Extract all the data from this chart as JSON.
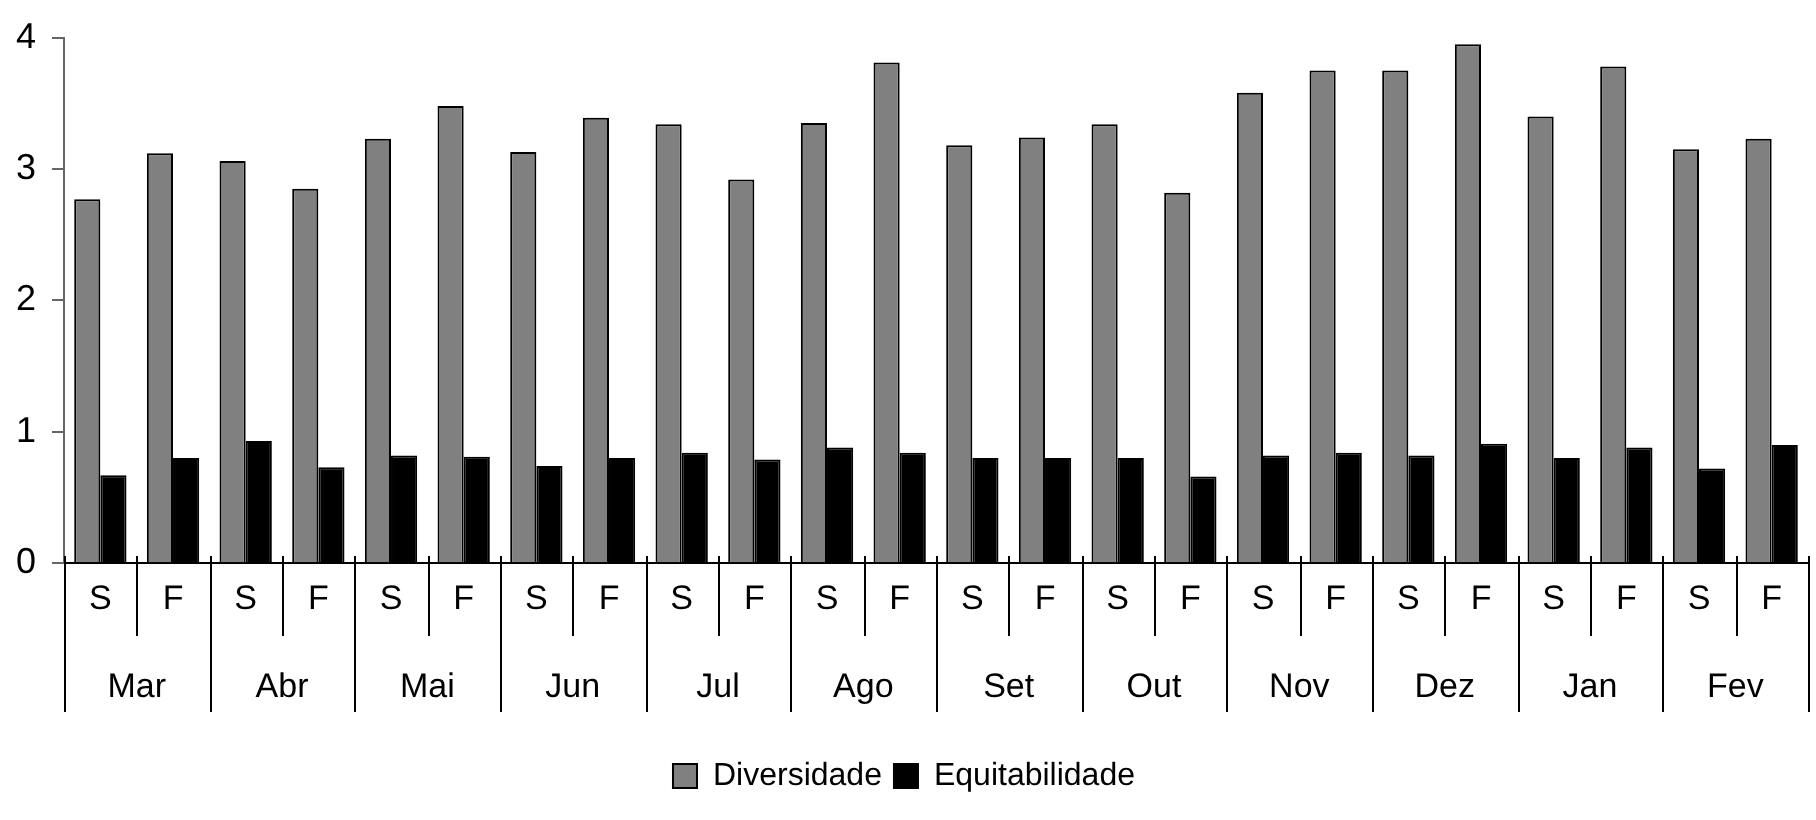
{
  "chart_data": {
    "type": "bar",
    "categories": [
      "S",
      "F",
      "S",
      "F",
      "S",
      "F",
      "S",
      "F",
      "S",
      "F",
      "S",
      "F",
      "S",
      "F",
      "S",
      "F",
      "S",
      "F",
      "S",
      "F",
      "S",
      "F",
      "S",
      "F"
    ],
    "series": [
      {
        "name": "Diversidade",
        "color": "#808080",
        "values": [
          2.77,
          3.12,
          3.06,
          2.85,
          3.23,
          3.48,
          3.13,
          3.39,
          3.34,
          2.92,
          3.35,
          3.81,
          3.18,
          3.24,
          3.34,
          2.82,
          3.58,
          3.75,
          3.75,
          3.95,
          3.4,
          3.78,
          3.15,
          3.23
        ]
      },
      {
        "name": "Equitabilidade",
        "color": "#000000",
        "values": [
          0.67,
          0.8,
          0.93,
          0.73,
          0.82,
          0.81,
          0.74,
          0.8,
          0.84,
          0.79,
          0.88,
          0.84,
          0.8,
          0.8,
          0.8,
          0.66,
          0.82,
          0.84,
          0.82,
          0.91,
          0.8,
          0.88,
          0.72,
          0.9
        ]
      }
    ],
    "annotations": [
      "Mar",
      "Abr",
      "Mai",
      "Jun",
      "Jul",
      "Ago",
      "Set",
      "Out",
      "Nov",
      "Dez",
      "Jan",
      "Fev"
    ],
    "ylim": [
      0,
      4
    ],
    "yticks": [
      0,
      1,
      2,
      3,
      4
    ],
    "grid": false,
    "legend": "bottom"
  }
}
